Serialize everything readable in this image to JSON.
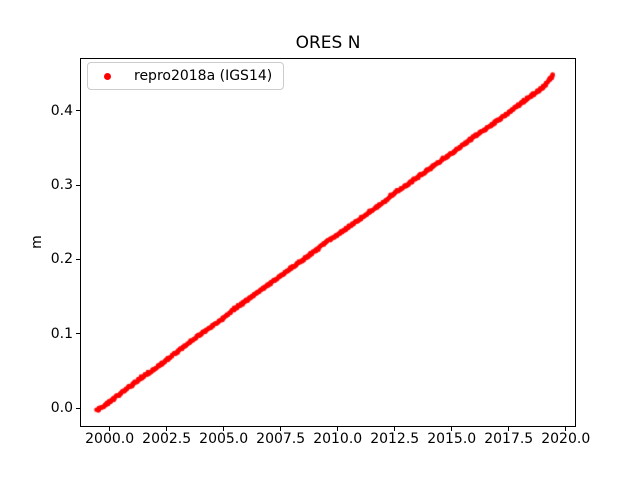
{
  "figure": {
    "background": "#ffffff"
  },
  "chart_data": {
    "type": "scatter",
    "title": "ORES N",
    "xlabel": "",
    "ylabel": "m",
    "grid": false,
    "legend": {
      "position": "upper-left",
      "border_color": "#cccccc",
      "entries": [
        "repro2018a (IGS14)"
      ]
    },
    "xlim": [
      1998.7,
      2020.45
    ],
    "ylim": [
      -0.0256,
      0.4716
    ],
    "xticks": [
      2000.0,
      2002.5,
      2005.0,
      2007.5,
      2010.0,
      2012.5,
      2015.0,
      2017.5,
      2020.0
    ],
    "xtick_labels": [
      "2000.0",
      "2002.5",
      "2005.0",
      "2007.5",
      "2010.0",
      "2012.5",
      "2015.0",
      "2017.5",
      "2020.0"
    ],
    "yticks": [
      0.0,
      0.1,
      0.2,
      0.3,
      0.4
    ],
    "ytick_labels": [
      "0.0",
      "0.1",
      "0.2",
      "0.3",
      "0.4"
    ],
    "series": [
      {
        "name": "repro2018a (IGS14)",
        "color": "#ff0000",
        "marker": "dot",
        "marker_size_px": 5,
        "x": [
          1999.45,
          2000.0,
          2000.5,
          2001.0,
          2001.5,
          2002.0,
          2002.5,
          2003.0,
          2003.5,
          2004.0,
          2004.5,
          2005.0,
          2005.5,
          2006.0,
          2006.5,
          2007.0,
          2007.5,
          2008.0,
          2008.5,
          2009.0,
          2009.5,
          2010.0,
          2010.5,
          2011.0,
          2011.5,
          2012.0,
          2012.5,
          2013.0,
          2013.5,
          2014.0,
          2014.5,
          2015.0,
          2015.5,
          2016.0,
          2016.5,
          2017.0,
          2017.5,
          2018.0,
          2018.5,
          2019.0,
          2019.45
        ],
        "y": [
          -0.003,
          0.009,
          0.021,
          0.032,
          0.044,
          0.054,
          0.066,
          0.077,
          0.09,
          0.1,
          0.111,
          0.122,
          0.135,
          0.145,
          0.156,
          0.167,
          0.179,
          0.19,
          0.201,
          0.212,
          0.224,
          0.234,
          0.245,
          0.256,
          0.267,
          0.278,
          0.29,
          0.3,
          0.311,
          0.322,
          0.333,
          0.344,
          0.355,
          0.366,
          0.376,
          0.387,
          0.398,
          0.41,
          0.421,
          0.432,
          0.449
        ]
      }
    ]
  }
}
